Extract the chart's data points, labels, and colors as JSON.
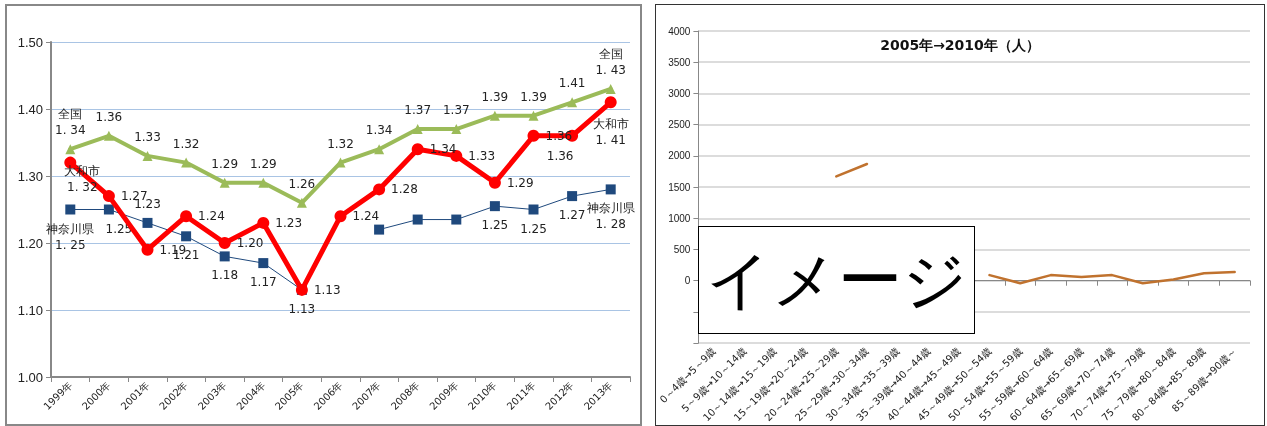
{
  "chart_data": [
    {
      "type": "line",
      "categories": [
        "1999年",
        "2000年",
        "2001年",
        "2002年",
        "2003年",
        "2004年",
        "2005年",
        "2006年",
        "2007年",
        "2008年",
        "2009年",
        "2010年",
        "2011年",
        "2012年",
        "2013年"
      ],
      "ylim": [
        1.0,
        1.5
      ],
      "yticks": [
        {
          "value": 1.0,
          "label": "1.00"
        },
        {
          "value": 1.1,
          "label": "1.10"
        },
        {
          "value": 1.2,
          "label": "1.20"
        },
        {
          "value": 1.3,
          "label": "1.30"
        },
        {
          "value": 1.4,
          "label": "1.40"
        },
        {
          "value": 1.5,
          "label": "1.50"
        }
      ],
      "grid": "y",
      "series": [
        {
          "name": "全国",
          "color": "#9bbb59",
          "marker": "triangle",
          "values": [
            1.34,
            1.36,
            1.33,
            1.32,
            1.29,
            1.29,
            1.26,
            1.32,
            1.34,
            1.37,
            1.37,
            1.39,
            1.39,
            1.41,
            1.43
          ],
          "value_labels": [
            "1. 34",
            "1.36",
            "1.33",
            "1.32",
            "1.29",
            "1.29",
            "1.26",
            "1.32",
            "1.34",
            "1.37",
            "1.37",
            "1.39",
            "1.39",
            "1.41",
            "1. 43"
          ]
        },
        {
          "name": "大和市",
          "color": "#ff0000",
          "marker": "circle",
          "values": [
            1.32,
            1.27,
            1.19,
            1.24,
            1.2,
            1.23,
            1.13,
            1.24,
            1.28,
            1.34,
            1.33,
            1.29,
            1.36,
            1.36,
            1.41
          ],
          "value_labels": [
            "1. 32",
            "1.27",
            "1.19",
            "1.24",
            "1.20",
            "1.23",
            "1.13",
            "1.24",
            "1.28",
            "1.34",
            "1.33",
            "1.29",
            "1.36",
            "1.36",
            "1. 41"
          ]
        },
        {
          "name": "神奈川県",
          "color": "#1f497d",
          "marker": "square",
          "values": [
            1.25,
            1.25,
            1.23,
            1.21,
            1.18,
            1.17,
            1.13,
            null,
            1.22,
            1.235,
            1.235,
            1.255,
            1.25,
            1.27,
            1.28
          ],
          "value_labels": [
            "1. 25",
            "1.25",
            "1.23",
            "1.21",
            "1.18",
            "1.17",
            "1.13",
            null,
            null,
            null,
            null,
            "1.25",
            "1.25",
            "1.27",
            "1. 28"
          ]
        }
      ]
    },
    {
      "type": "line",
      "title": "2005年→2010年（人）",
      "categories": [
        "0～4歳→5～9歳",
        "5～9歳→10～14歳",
        "10～14歳→15～19歳",
        "15～19歳→20～24歳",
        "20～24歳→25～29歳",
        "25～29歳→30～34歳",
        "30～34歳→35～39歳",
        "35～39歳→40～44歳",
        "40～44歳→45～49歳",
        "45～49歳→50～54歳",
        "50～54歳→55～59歳",
        "55～59歳→60～64歳",
        "60～64歳→65～69歳",
        "65～69歳→70～74歳",
        "70～74歳→75～79歳",
        "75～79歳→80～84歳",
        "80～84歳→85～89歳",
        "85～89歳→90歳～"
      ],
      "ylim": [
        -1000,
        4000
      ],
      "yticks": [
        {
          "value": -1000,
          "label": null
        },
        {
          "value": -500,
          "label": null
        },
        0,
        500,
        1000,
        1500,
        2000,
        2500,
        3000,
        3500,
        4000
      ],
      "grid": "y",
      "marker": "none",
      "series": [
        {
          "color": "#c0722e",
          "values": [
            null,
            null,
            null,
            null,
            1670,
            1870,
            null,
            null,
            null,
            90,
            -40,
            90,
            60,
            90,
            -40,
            20,
            120,
            140
          ]
        }
      ]
    },
    {
      "type": "other",
      "title": "イメージ"
    }
  ]
}
